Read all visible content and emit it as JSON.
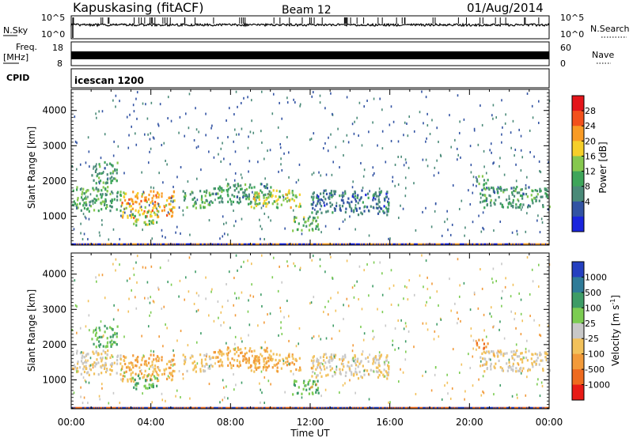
{
  "header": {
    "station": "Kapuskasing (fitACF)",
    "beam": "Beam 12",
    "date": "01/Aug/2014"
  },
  "strips": {
    "nsky_label": "N.Sky",
    "nsky_tick_top": "10^5",
    "nsky_tick_bottom": "10^0",
    "nsearch_label": "N.Search",
    "nsearch_tick_top": "10^5",
    "nsearch_tick_bottom": "10^0",
    "freq_label_1": "Freq.",
    "freq_label_2": "[MHz]",
    "freq_tick_top": "18",
    "freq_tick_bottom": "8",
    "nave_label": "Nave",
    "nave_tick_top": "60",
    "nave_tick_bottom": "0",
    "cpid_label": "CPID",
    "cpid_value": "icescan 1200"
  },
  "colorbars": {
    "power": {
      "label": "Power [dB]",
      "ticks": [
        "28",
        "24",
        "20",
        "16",
        "12",
        "8",
        "4"
      ],
      "colors": [
        "#e4151a",
        "#f3511c",
        "#f99b25",
        "#f6cf29",
        "#86c84e",
        "#3ea55a",
        "#4a8a78",
        "#3253a3",
        "#1a25dd"
      ]
    },
    "velocity": {
      "label": "Velocity [m s",
      "label_sup": "-1",
      "label_end": "]",
      "ticks": [
        "1000",
        "500",
        "100",
        "25",
        "-25",
        "-100",
        "-500",
        "-1000"
      ],
      "colors": [
        "#2540c0",
        "#2f7b98",
        "#3e9c66",
        "#7ccc52",
        "#c8c8c8",
        "#f2c15b",
        "#f29a3a",
        "#ee6a1f",
        "#e81b16"
      ]
    }
  },
  "chart_data": {
    "type": "heatmap",
    "time_ticks": [
      "00:00",
      "04:00",
      "08:00",
      "12:00",
      "16:00",
      "20:00",
      "00:00"
    ],
    "xlabel": "Time UT",
    "ylabel": "Slant Range [km]",
    "yticks": [
      "1000",
      "2000",
      "3000",
      "4000"
    ],
    "ylim": [
      180,
      4600
    ],
    "xlim_hours": [
      0,
      24
    ],
    "echo_regions": [
      {
        "t": [
          0.0,
          2.5
        ],
        "r": [
          1100,
          1800
        ],
        "power_db": 12,
        "velocity": -25
      },
      {
        "t": [
          1.0,
          2.3
        ],
        "r": [
          1900,
          2500
        ],
        "power_db": 10,
        "velocity": 100
      },
      {
        "t": [
          2.5,
          5.2
        ],
        "r": [
          900,
          1700
        ],
        "power_db": 22,
        "velocity": -100
      },
      {
        "t": [
          3.0,
          4.3
        ],
        "r": [
          700,
          1100
        ],
        "power_db": 16,
        "velocity": 100
      },
      {
        "t": [
          5.5,
          7.0
        ],
        "r": [
          1200,
          1700
        ],
        "power_db": 12,
        "velocity": -25
      },
      {
        "t": [
          7.0,
          10.0
        ],
        "r": [
          1300,
          1900
        ],
        "power_db": 10,
        "velocity": -100
      },
      {
        "t": [
          9.0,
          11.5
        ],
        "r": [
          1200,
          1700
        ],
        "power_db": 18,
        "velocity": -100
      },
      {
        "t": [
          11.0,
          12.4
        ],
        "r": [
          550,
          950
        ],
        "power_db": 14,
        "velocity": 100
      },
      {
        "t": [
          12.0,
          16.0
        ],
        "r": [
          1000,
          1700
        ],
        "power_db": 6,
        "velocity": -25
      },
      {
        "t": [
          20.5,
          24.0
        ],
        "r": [
          1200,
          1800
        ],
        "power_db": 10,
        "velocity": -25
      },
      {
        "t": [
          20.3,
          20.9
        ],
        "r": [
          1800,
          2100
        ],
        "power_db": 12,
        "velocity": -500
      }
    ]
  }
}
